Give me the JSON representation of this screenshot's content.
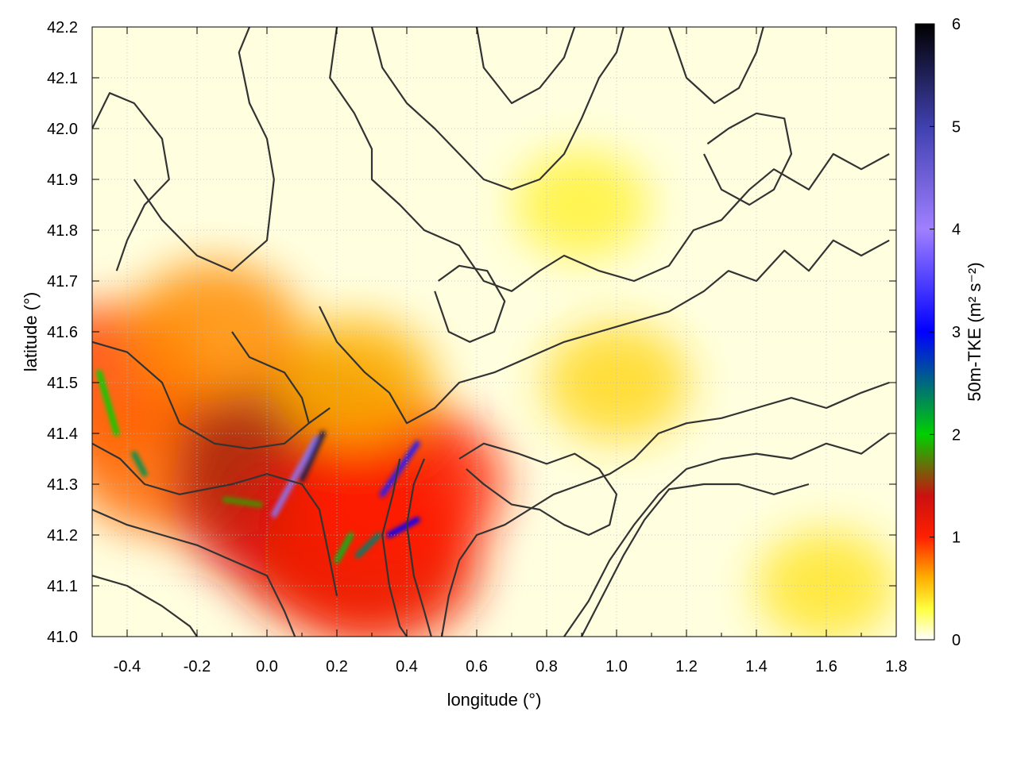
{
  "chart_data": {
    "type": "heatmap",
    "title": "",
    "xlabel": "longitude (°)",
    "ylabel": "latitude (°)",
    "colorbar_label": "50m-TKE (m² s⁻²)",
    "xlim": [
      -0.5,
      1.8
    ],
    "ylim": [
      41.0,
      42.2
    ],
    "clim": [
      0,
      6
    ],
    "x_ticks": [
      -0.4,
      -0.2,
      0.0,
      0.2,
      0.4,
      0.6,
      0.8,
      1.0,
      1.2,
      1.4,
      1.6,
      1.8
    ],
    "x_tick_labels": [
      "-0.4",
      "-0.2",
      "0.0",
      "0.2",
      "0.4",
      "0.6",
      "0.8",
      "1.0",
      "1.2",
      "1.4",
      "1.6",
      "1.8"
    ],
    "y_ticks": [
      41.0,
      41.1,
      41.2,
      41.3,
      41.4,
      41.5,
      41.6,
      41.7,
      41.8,
      41.9,
      42.0,
      42.1,
      42.2
    ],
    "y_tick_labels": [
      "41.0",
      "41.1",
      "41.2",
      "41.3",
      "41.4",
      "41.5",
      "41.6",
      "41.7",
      "41.8",
      "41.9",
      "42.0",
      "42.1",
      "42.2"
    ],
    "colorbar_ticks": [
      0,
      1,
      2,
      3,
      4,
      5,
      6
    ],
    "colorbar_tick_labels": [
      "0",
      "1",
      "2",
      "3",
      "4",
      "5",
      "6"
    ],
    "colormap": [
      {
        "value": 0.0,
        "color": "#ffffff"
      },
      {
        "value": 0.3,
        "color": "#ffff40"
      },
      {
        "value": 0.6,
        "color": "#ffb000"
      },
      {
        "value": 1.0,
        "color": "#ff2000"
      },
      {
        "value": 1.4,
        "color": "#cc1010"
      },
      {
        "value": 2.0,
        "color": "#00d000"
      },
      {
        "value": 3.0,
        "color": "#0000ff"
      },
      {
        "value": 4.0,
        "color": "#a080ff"
      },
      {
        "value": 5.0,
        "color": "#4040b0"
      },
      {
        "value": 6.0,
        "color": "#000000"
      }
    ],
    "field_hotspots": [
      {
        "lon": -0.45,
        "lat": 41.5,
        "tke": 0.9
      },
      {
        "lon": -0.3,
        "lat": 41.35,
        "tke": 0.8
      },
      {
        "lon": 0.05,
        "lat": 41.28,
        "tke": 1.2
      },
      {
        "lon": 0.12,
        "lat": 41.35,
        "tke": 1.5
      },
      {
        "lon": 0.22,
        "lat": 41.2,
        "tke": 1.3
      },
      {
        "lon": 0.3,
        "lat": 41.15,
        "tke": 1.1
      },
      {
        "lon": 0.38,
        "lat": 41.3,
        "tke": 1.0
      },
      {
        "lon": 0.25,
        "lat": 41.5,
        "tke": 0.6
      },
      {
        "lon": -0.15,
        "lat": 41.6,
        "tke": 0.7
      },
      {
        "lon": 1.0,
        "lat": 41.5,
        "tke": 0.45
      },
      {
        "lon": 1.6,
        "lat": 41.1,
        "tke": 0.4
      },
      {
        "lon": 0.9,
        "lat": 41.85,
        "tke": 0.35
      }
    ],
    "peak_ridges": [
      {
        "lon0": 0.02,
        "lat0": 41.24,
        "lon1": 0.14,
        "lat1": 41.39,
        "tke": 4.2
      },
      {
        "lon0": 0.1,
        "lat0": 41.31,
        "lon1": 0.16,
        "lat1": 41.4,
        "tke": 5.6
      },
      {
        "lon0": -0.48,
        "lat0": 41.52,
        "lon1": -0.43,
        "lat1": 41.4,
        "tke": 2.0
      },
      {
        "lon0": -0.38,
        "lat0": 41.36,
        "lon1": -0.35,
        "lat1": 41.32,
        "tke": 2.3
      },
      {
        "lon0": 0.33,
        "lat0": 41.28,
        "lon1": 0.43,
        "lat1": 41.38,
        "tke": 3.2
      },
      {
        "lon0": 0.2,
        "lat0": 41.15,
        "lon1": 0.24,
        "lat1": 41.2,
        "tke": 2.1
      },
      {
        "lon0": 0.26,
        "lat0": 41.16,
        "lon1": 0.32,
        "lat1": 41.2,
        "tke": 2.4
      },
      {
        "lon0": 0.35,
        "lat0": 41.2,
        "lon1": 0.43,
        "lat1": 41.23,
        "tke": 3.0
      },
      {
        "lon0": -0.12,
        "lat0": 41.27,
        "lon1": -0.02,
        "lat1": 41.26,
        "tke": 1.8
      }
    ],
    "contours": [
      [
        [
          -0.5,
          42.0
        ],
        [
          -0.45,
          42.07
        ],
        [
          -0.38,
          42.05
        ],
        [
          -0.3,
          41.98
        ],
        [
          -0.28,
          41.9
        ],
        [
          -0.35,
          41.85
        ],
        [
          -0.4,
          41.78
        ],
        [
          -0.43,
          41.72
        ]
      ],
      [
        [
          -0.38,
          41.9
        ],
        [
          -0.3,
          41.82
        ],
        [
          -0.2,
          41.75
        ],
        [
          -0.1,
          41.72
        ],
        [
          0.0,
          41.78
        ],
        [
          0.02,
          41.9
        ],
        [
          0.0,
          41.98
        ],
        [
          -0.05,
          42.05
        ],
        [
          -0.08,
          42.15
        ],
        [
          -0.05,
          42.2
        ]
      ],
      [
        [
          0.2,
          42.2
        ],
        [
          0.18,
          42.1
        ],
        [
          0.25,
          42.03
        ],
        [
          0.3,
          41.96
        ],
        [
          0.3,
          41.9
        ],
        [
          0.38,
          41.85
        ],
        [
          0.45,
          41.8
        ],
        [
          0.55,
          41.77
        ],
        [
          0.62,
          41.7
        ],
        [
          0.7,
          41.68
        ],
        [
          0.78,
          41.72
        ],
        [
          0.85,
          41.75
        ],
        [
          0.95,
          41.72
        ],
        [
          1.05,
          41.7
        ],
        [
          1.15,
          41.73
        ],
        [
          1.22,
          41.8
        ],
        [
          1.3,
          41.82
        ],
        [
          1.38,
          41.88
        ],
        [
          1.45,
          41.92
        ],
        [
          1.55,
          41.88
        ],
        [
          1.62,
          41.95
        ],
        [
          1.7,
          41.92
        ],
        [
          1.78,
          41.95
        ]
      ],
      [
        [
          0.15,
          41.65
        ],
        [
          0.2,
          41.58
        ],
        [
          0.28,
          41.52
        ],
        [
          0.35,
          41.48
        ],
        [
          0.4,
          41.42
        ],
        [
          0.48,
          41.45
        ],
        [
          0.55,
          41.5
        ],
        [
          0.65,
          41.52
        ],
        [
          0.75,
          41.55
        ],
        [
          0.85,
          41.58
        ],
        [
          0.95,
          41.6
        ],
        [
          1.05,
          41.62
        ],
        [
          1.15,
          41.64
        ],
        [
          1.25,
          41.68
        ],
        [
          1.32,
          41.72
        ],
        [
          1.4,
          41.7
        ],
        [
          1.48,
          41.76
        ],
        [
          1.55,
          41.72
        ],
        [
          1.62,
          41.78
        ],
        [
          1.7,
          41.75
        ],
        [
          1.78,
          41.78
        ]
      ],
      [
        [
          -0.5,
          41.25
        ],
        [
          -0.4,
          41.22
        ],
        [
          -0.3,
          41.2
        ],
        [
          -0.2,
          41.18
        ],
        [
          -0.1,
          41.15
        ],
        [
          0.0,
          41.12
        ],
        [
          0.05,
          41.05
        ],
        [
          0.08,
          41.0
        ]
      ],
      [
        [
          -0.5,
          41.38
        ],
        [
          -0.42,
          41.35
        ],
        [
          -0.35,
          41.3
        ],
        [
          -0.25,
          41.28
        ],
        [
          -0.1,
          41.3
        ],
        [
          0.0,
          41.32
        ],
        [
          0.1,
          41.3
        ],
        [
          0.15,
          41.25
        ],
        [
          0.18,
          41.15
        ],
        [
          0.2,
          41.08
        ]
      ],
      [
        [
          -0.5,
          41.58
        ],
        [
          -0.4,
          41.56
        ],
        [
          -0.3,
          41.5
        ],
        [
          -0.25,
          41.42
        ],
        [
          -0.15,
          41.38
        ],
        [
          -0.05,
          41.37
        ],
        [
          0.05,
          41.38
        ],
        [
          0.12,
          41.42
        ],
        [
          0.18,
          41.45
        ]
      ],
      [
        [
          0.5,
          41.0
        ],
        [
          0.52,
          41.08
        ],
        [
          0.55,
          41.15
        ],
        [
          0.6,
          41.2
        ],
        [
          0.68,
          41.22
        ],
        [
          0.75,
          41.25
        ],
        [
          0.82,
          41.28
        ],
        [
          0.9,
          41.3
        ],
        [
          0.98,
          41.32
        ],
        [
          1.05,
          41.35
        ],
        [
          1.12,
          41.4
        ],
        [
          1.2,
          41.42
        ],
        [
          1.3,
          41.43
        ],
        [
          1.4,
          41.45
        ],
        [
          1.5,
          41.47
        ],
        [
          1.6,
          41.45
        ],
        [
          1.7,
          41.48
        ],
        [
          1.78,
          41.5
        ]
      ],
      [
        [
          0.85,
          41.0
        ],
        [
          0.92,
          41.07
        ],
        [
          0.98,
          41.15
        ],
        [
          1.05,
          41.22
        ],
        [
          1.12,
          41.28
        ],
        [
          1.2,
          41.33
        ],
        [
          1.3,
          41.35
        ],
        [
          1.4,
          41.36
        ],
        [
          1.5,
          41.35
        ],
        [
          1.6,
          41.38
        ],
        [
          1.7,
          41.36
        ],
        [
          1.78,
          41.4
        ]
      ],
      [
        [
          0.9,
          41.0
        ],
        [
          0.96,
          41.08
        ],
        [
          1.02,
          41.16
        ],
        [
          1.08,
          41.23
        ],
        [
          1.15,
          41.29
        ],
        [
          1.25,
          41.3
        ],
        [
          1.35,
          41.3
        ],
        [
          1.45,
          41.28
        ],
        [
          1.55,
          41.3
        ]
      ],
      [
        [
          0.55,
          41.35
        ],
        [
          0.62,
          41.38
        ],
        [
          0.72,
          41.36
        ],
        [
          0.8,
          41.34
        ],
        [
          0.88,
          41.36
        ],
        [
          0.95,
          41.33
        ],
        [
          1.0,
          41.28
        ],
        [
          0.98,
          41.22
        ],
        [
          0.92,
          41.2
        ],
        [
          0.85,
          41.22
        ],
        [
          0.78,
          41.25
        ],
        [
          0.7,
          41.26
        ],
        [
          0.62,
          41.3
        ],
        [
          0.57,
          41.33
        ]
      ],
      [
        [
          0.3,
          42.2
        ],
        [
          0.33,
          42.12
        ],
        [
          0.4,
          42.05
        ],
        [
          0.48,
          42.0
        ],
        [
          0.55,
          41.95
        ],
        [
          0.62,
          41.9
        ],
        [
          0.7,
          41.88
        ],
        [
          0.78,
          41.9
        ],
        [
          0.85,
          41.95
        ],
        [
          0.9,
          42.02
        ],
        [
          0.95,
          42.1
        ],
        [
          1.0,
          42.15
        ],
        [
          1.02,
          42.2
        ]
      ],
      [
        [
          0.6,
          42.2
        ],
        [
          0.62,
          42.12
        ],
        [
          0.7,
          42.05
        ],
        [
          0.78,
          42.08
        ],
        [
          0.85,
          42.14
        ],
        [
          0.88,
          42.2
        ]
      ],
      [
        [
          1.15,
          42.2
        ],
        [
          1.2,
          42.1
        ],
        [
          1.28,
          42.05
        ],
        [
          1.35,
          42.08
        ],
        [
          1.4,
          42.15
        ],
        [
          1.42,
          42.2
        ]
      ],
      [
        [
          1.25,
          41.95
        ],
        [
          1.3,
          41.88
        ],
        [
          1.38,
          41.85
        ],
        [
          1.45,
          41.88
        ],
        [
          1.5,
          41.95
        ],
        [
          1.48,
          42.02
        ],
        [
          1.4,
          42.03
        ],
        [
          1.32,
          42.0
        ],
        [
          1.26,
          41.97
        ]
      ],
      [
        [
          -0.1,
          41.6
        ],
        [
          -0.05,
          41.55
        ],
        [
          0.05,
          41.52
        ],
        [
          0.1,
          41.47
        ],
        [
          0.12,
          41.42
        ]
      ],
      [
        [
          0.48,
          41.68
        ],
        [
          0.52,
          41.6
        ],
        [
          0.58,
          41.58
        ],
        [
          0.65,
          41.6
        ],
        [
          0.68,
          41.66
        ],
        [
          0.63,
          41.72
        ],
        [
          0.55,
          41.73
        ],
        [
          0.49,
          41.7
        ]
      ],
      [
        [
          -0.5,
          41.12
        ],
        [
          -0.4,
          41.1
        ],
        [
          -0.3,
          41.06
        ],
        [
          -0.22,
          41.02
        ],
        [
          -0.2,
          41.0
        ]
      ],
      [
        [
          0.45,
          41.35
        ],
        [
          0.42,
          41.3
        ],
        [
          0.4,
          41.22
        ],
        [
          0.42,
          41.12
        ],
        [
          0.45,
          41.05
        ],
        [
          0.47,
          41.0
        ]
      ],
      [
        [
          0.38,
          41.35
        ],
        [
          0.36,
          41.28
        ],
        [
          0.33,
          41.2
        ],
        [
          0.35,
          41.1
        ],
        [
          0.38,
          41.02
        ],
        [
          0.4,
          41.0
        ]
      ]
    ]
  }
}
